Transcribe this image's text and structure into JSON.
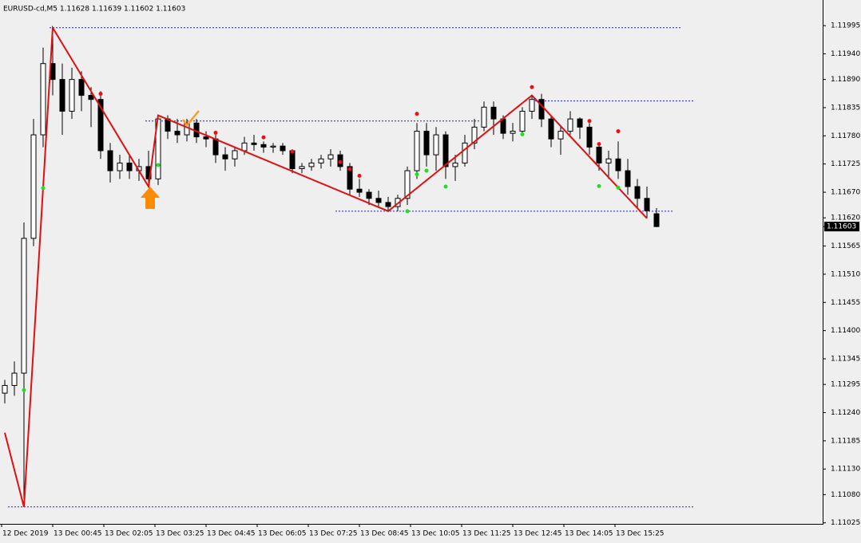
{
  "chart_data": {
    "type": "candlestick",
    "title": "EURUSD-cd,M5  1.11628 1.11639 1.11602 1.11603",
    "time_labels": [
      "12 Dec 2019",
      "13 Dec 00:45",
      "13 Dec 02:05",
      "13 Dec 03:25",
      "13 Dec 04:45",
      "13 Dec 06:05",
      "13 Dec 07:25",
      "13 Dec 08:45",
      "13 Dec 10:05",
      "13 Dec 11:25",
      "13 Dec 12:45",
      "13 Dec 14:05",
      "13 Dec 15:25"
    ],
    "ohlc": [
      [
        1.11278,
        1.11304,
        1.11258,
        1.11293
      ],
      [
        1.11293,
        1.1134,
        1.11273,
        1.11317
      ],
      [
        1.11317,
        1.11611,
        1.11056,
        1.1158
      ],
      [
        1.1158,
        1.11813,
        1.11565,
        1.11782
      ],
      [
        1.11782,
        1.11952,
        1.11758,
        1.11921
      ],
      [
        1.11921,
        1.11991,
        1.11859,
        1.1189
      ],
      [
        1.1189,
        1.11921,
        1.11782,
        1.11828
      ],
      [
        1.11828,
        1.11913,
        1.11813,
        1.1189
      ],
      [
        1.1189,
        1.11906,
        1.11828,
        1.11859
      ],
      [
        1.11859,
        1.11875,
        1.11797,
        1.11851
      ],
      [
        1.11851,
        1.11867,
        1.11735,
        1.11751
      ],
      [
        1.11751,
        1.11766,
        1.11689,
        1.11712
      ],
      [
        1.11712,
        1.11743,
        1.11696,
        1.11727
      ],
      [
        1.11727,
        1.11743,
        1.11696,
        1.11712
      ],
      [
        1.11712,
        1.11735,
        1.11692,
        1.1172
      ],
      [
        1.1172,
        1.11751,
        1.11681,
        1.11696
      ],
      [
        1.11696,
        1.1182,
        1.11684,
        1.11813
      ],
      [
        1.11813,
        1.1182,
        1.11774,
        1.11789
      ],
      [
        1.11789,
        1.11813,
        1.11766,
        1.11782
      ],
      [
        1.11782,
        1.11813,
        1.11769,
        1.11805
      ],
      [
        1.11805,
        1.11813,
        1.11766,
        1.11778
      ],
      [
        1.11778,
        1.11789,
        1.11758,
        1.11774
      ],
      [
        1.11774,
        1.11782,
        1.11727,
        1.11743
      ],
      [
        1.11743,
        1.11758,
        1.11712,
        1.11735
      ],
      [
        1.11735,
        1.11758,
        1.1172,
        1.11751
      ],
      [
        1.11751,
        1.11778,
        1.11743,
        1.11766
      ],
      [
        1.11766,
        1.11782,
        1.11751,
        1.11763
      ],
      [
        1.11763,
        1.11769,
        1.11747,
        1.11758
      ],
      [
        1.11758,
        1.11766,
        1.11747,
        1.1176
      ],
      [
        1.1176,
        1.11766,
        1.11743,
        1.11751
      ],
      [
        1.11751,
        1.11754,
        1.11707,
        1.11716
      ],
      [
        1.11716,
        1.11727,
        1.11707,
        1.1172
      ],
      [
        1.1172,
        1.11735,
        1.11712,
        1.11727
      ],
      [
        1.11727,
        1.11743,
        1.11716,
        1.11735
      ],
      [
        1.11735,
        1.11754,
        1.1172,
        1.11743
      ],
      [
        1.11743,
        1.11751,
        1.11712,
        1.1172
      ],
      [
        1.1172,
        1.11727,
        1.11665,
        1.11676
      ],
      [
        1.11676,
        1.11696,
        1.11661,
        1.1167
      ],
      [
        1.1167,
        1.11676,
        1.11645,
        1.11658
      ],
      [
        1.11658,
        1.11673,
        1.11639,
        1.1165
      ],
      [
        1.1165,
        1.11661,
        1.11633,
        1.11642
      ],
      [
        1.11642,
        1.11665,
        1.11633,
        1.11658
      ],
      [
        1.11658,
        1.1172,
        1.11645,
        1.11712
      ],
      [
        1.11712,
        1.11805,
        1.11696,
        1.11789
      ],
      [
        1.11789,
        1.11805,
        1.1172,
        1.11743
      ],
      [
        1.11743,
        1.11797,
        1.11712,
        1.11782
      ],
      [
        1.11782,
        1.11789,
        1.11696,
        1.1172
      ],
      [
        1.1172,
        1.11743,
        1.11692,
        1.11727
      ],
      [
        1.11727,
        1.11782,
        1.1172,
        1.11766
      ],
      [
        1.11766,
        1.11813,
        1.11754,
        1.11797
      ],
      [
        1.11797,
        1.11847,
        1.11789,
        1.11836
      ],
      [
        1.11836,
        1.11847,
        1.11782,
        1.11813
      ],
      [
        1.11813,
        1.1182,
        1.11774,
        1.11785
      ],
      [
        1.11785,
        1.11805,
        1.11769,
        1.11789
      ],
      [
        1.11789,
        1.11836,
        1.11782,
        1.11828
      ],
      [
        1.11828,
        1.11859,
        1.11813,
        1.11851
      ],
      [
        1.11851,
        1.11862,
        1.11797,
        1.11813
      ],
      [
        1.11813,
        1.1182,
        1.11758,
        1.11774
      ],
      [
        1.11774,
        1.11797,
        1.11743,
        1.11789
      ],
      [
        1.11789,
        1.11828,
        1.11782,
        1.11813
      ],
      [
        1.11813,
        1.11816,
        1.11774,
        1.11797
      ],
      [
        1.11797,
        1.11805,
        1.11743,
        1.11758
      ],
      [
        1.11758,
        1.11766,
        1.11712,
        1.11727
      ],
      [
        1.11727,
        1.11751,
        1.11696,
        1.11735
      ],
      [
        1.11735,
        1.11769,
        1.11696,
        1.11712
      ],
      [
        1.11712,
        1.11735,
        1.11665,
        1.11681
      ],
      [
        1.11681,
        1.11696,
        1.11639,
        1.11658
      ],
      [
        1.11658,
        1.11681,
        1.11619,
        1.11634
      ],
      [
        1.11628,
        1.11639,
        1.11602,
        1.11603
      ]
    ],
    "bull_color": "#ffffff",
    "bear_color": "#000000",
    "zigzag": {
      "color": "#e01010",
      "bars": [
        0,
        2,
        5,
        15,
        16,
        40,
        55,
        67
      ],
      "prices": [
        1.11201,
        1.11056,
        1.11991,
        1.11681,
        1.1182,
        1.11633,
        1.11859,
        1.11619
      ]
    },
    "fractals_up": {
      "color": "#e81010",
      "bars": [
        10,
        22,
        27,
        30,
        35,
        36,
        37,
        43,
        55,
        61,
        62,
        64
      ],
      "prices": [
        1.11862,
        1.11786,
        1.11777,
        1.11749,
        1.11729,
        1.11715,
        1.11702,
        1.11823,
        1.11875,
        1.11809,
        1.11764,
        1.11789
      ]
    },
    "fractals_down": {
      "color": "#20e020",
      "bars": [
        2,
        4,
        16,
        42,
        43,
        44,
        46,
        54,
        62,
        64
      ],
      "prices": [
        1.11284,
        1.11678,
        1.11723,
        1.11633,
        1.11705,
        1.11712,
        1.11681,
        1.11783,
        1.11682,
        1.11679
      ]
    },
    "levels": {
      "color": "#2020c0",
      "prices": [
        1.11991,
        1.11809,
        1.11848,
        1.11633,
        1.11056
      ]
    },
    "last_price": 1.11603,
    "ylim": [
      1.11023,
      1.12045
    ],
    "yticks": [
      1.11995,
      {
        "value": 1.1194,
        "label": "1.11940"
      },
      {
        "value": 1.1189,
        "label": "1.11890"
      },
      1.11835,
      {
        "value": 1.1178,
        "label": "1.11780"
      },
      1.11725,
      {
        "value": 1.1167,
        "label": "1.11670"
      },
      {
        "value": 1.1162,
        "label": "1.11620"
      },
      1.11565,
      {
        "value": 1.1151,
        "label": "1.11510"
      },
      1.11455,
      {
        "value": 1.114,
        "label": "1.11400"
      },
      1.11345,
      1.11295,
      {
        "value": 1.1124,
        "label": "1.11240"
      },
      1.11185,
      {
        "value": 1.1113,
        "label": "1.11130"
      },
      {
        "value": 1.1108,
        "label": "1.11080"
      },
      1.11025
    ]
  }
}
